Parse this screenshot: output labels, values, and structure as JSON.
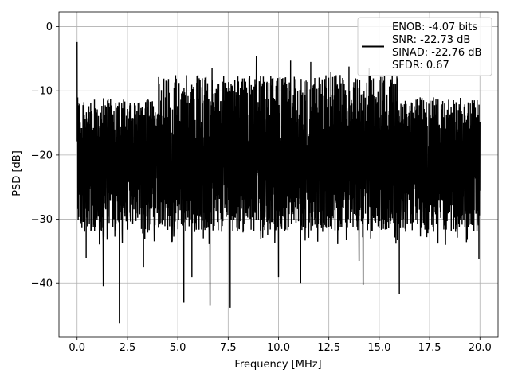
{
  "chart_data": {
    "type": "line",
    "title": "",
    "xlabel": "Frequency [MHz]",
    "ylabel": "PSD [dB]",
    "xlim": [
      -0.9,
      20.9
    ],
    "ylim": [
      -48.4,
      2.3
    ],
    "xticks": [
      0.0,
      2.5,
      5.0,
      7.5,
      10.0,
      12.5,
      15.0,
      17.5,
      20.0
    ],
    "xtick_labels": [
      "0.0",
      "2.5",
      "5.0",
      "7.5",
      "10.0",
      "12.5",
      "15.0",
      "17.5",
      "20.0"
    ],
    "yticks": [
      0,
      -10,
      -20,
      -30,
      -40
    ],
    "ytick_labels": [
      "0",
      "−10",
      "−20",
      "−30",
      "−40"
    ],
    "grid": true,
    "legend_placement": "upper right",
    "series": [
      {
        "name": "",
        "color": "#000000",
        "style": "noise-spectrum",
        "x_range": [
          0.0,
          20.0
        ],
        "leading_peak": {
          "x": 0.0,
          "y": -2.4
        },
        "noise_floor_center_db": -20,
        "upper_envelope_db": -5,
        "lower_envelope_db": -46,
        "deep_notches": [
          {
            "x": 0.45,
            "y": -33.5
          },
          {
            "x": 0.45,
            "y": -36.0
          },
          {
            "x": 1.3,
            "y": -40.5
          },
          {
            "x": 2.1,
            "y": -46.2
          },
          {
            "x": 3.3,
            "y": -37.5
          },
          {
            "x": 5.3,
            "y": -43.0
          },
          {
            "x": 5.7,
            "y": -39.0
          },
          {
            "x": 6.6,
            "y": -43.5
          },
          {
            "x": 7.6,
            "y": -43.8
          },
          {
            "x": 10.0,
            "y": -39.0
          },
          {
            "x": 11.1,
            "y": -40.0
          },
          {
            "x": 14.2,
            "y": -40.2
          },
          {
            "x": 14.0,
            "y": -36.5
          },
          {
            "x": 16.0,
            "y": -41.6
          },
          {
            "x": 19.95,
            "y": -36.2
          }
        ],
        "high_peaks": [
          {
            "x": 8.9,
            "y": -4.6
          },
          {
            "x": 10.6,
            "y": -5.3
          },
          {
            "x": 11.6,
            "y": -5.5
          },
          {
            "x": 13.5,
            "y": -6.2
          },
          {
            "x": 12.6,
            "y": -7.0
          },
          {
            "x": 14.5,
            "y": -6.5
          },
          {
            "x": 6.7,
            "y": -6.5
          }
        ]
      }
    ],
    "legend_text": [
      "ENOB: -4.07 bits",
      "SNR: -22.73 dB",
      "SINAD: -22.76 dB",
      "SFDR: 0.67"
    ]
  },
  "colors": {
    "line": "#000000",
    "grid": "#b0b0b0",
    "legend_border": "#cccccc",
    "background": "#ffffff"
  }
}
